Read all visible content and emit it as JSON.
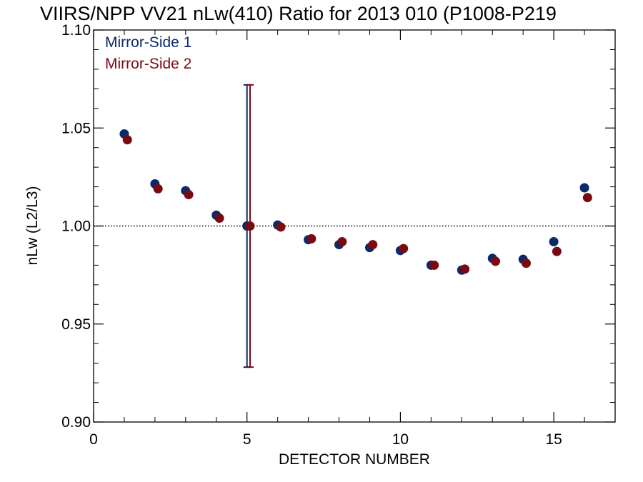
{
  "chart_data": {
    "type": "scatter",
    "title": "VIIRS/NPP VV21 nLw(410) Ratio for 2013 010 (P1008-P219",
    "xlabel": "DETECTOR NUMBER",
    "ylabel": "nLw (L2/L3)",
    "xlim": [
      0,
      17
    ],
    "ylim": [
      0.9,
      1.1
    ],
    "x_ticks": [
      0,
      5,
      10,
      15
    ],
    "y_ticks": [
      0.9,
      0.95,
      1.0,
      1.05,
      1.1
    ],
    "x_tick_labels": [
      "0",
      "5",
      "10",
      "15"
    ],
    "y_tick_labels": [
      "0.90",
      "0.95",
      "1.00",
      "1.05",
      "1.10"
    ],
    "reference_line": 1.0,
    "legend_position": "top-left",
    "series": [
      {
        "name": "Mirror-Side 1",
        "color": "#0a2a6b",
        "x": [
          1,
          2,
          3,
          4,
          5,
          6,
          7,
          8,
          9,
          10,
          11,
          12,
          13,
          14,
          15,
          16
        ],
        "y": [
          1.047,
          1.0215,
          1.018,
          1.0055,
          1.0,
          1.0005,
          0.993,
          0.9905,
          0.989,
          0.9875,
          0.98,
          0.9775,
          0.9835,
          0.983,
          0.992,
          1.0195
        ],
        "error_bar": {
          "x": 5,
          "low": 0.928,
          "high": 1.072
        }
      },
      {
        "name": "Mirror-Side 2",
        "color": "#7a0a12",
        "x": [
          1.1,
          2.1,
          3.1,
          4.1,
          5.1,
          6.1,
          7.1,
          8.1,
          9.1,
          10.1,
          11.1,
          12.1,
          13.1,
          14.1,
          15.1,
          16.1
        ],
        "y": [
          1.044,
          1.019,
          1.016,
          1.004,
          1.0,
          0.9995,
          0.9935,
          0.992,
          0.9905,
          0.9885,
          0.98,
          0.978,
          0.982,
          0.981,
          0.987,
          1.0145
        ],
        "error_bar": {
          "x": 5.1,
          "low": 0.928,
          "high": 1.072
        }
      }
    ]
  }
}
